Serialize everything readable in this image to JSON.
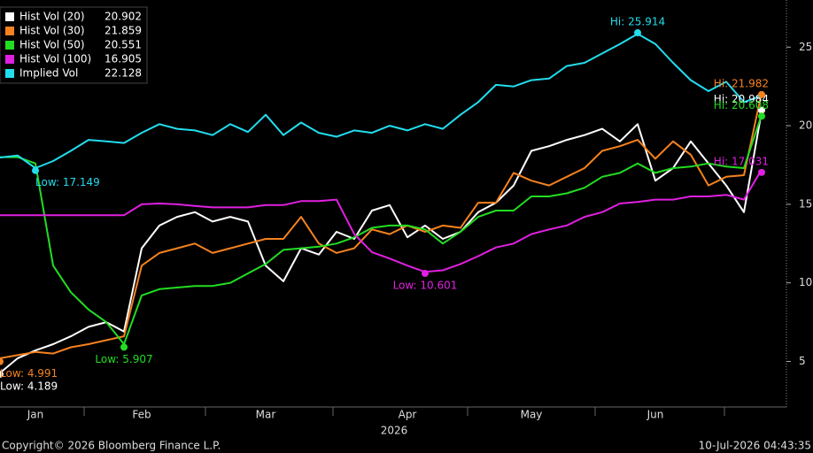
{
  "chart_data": {
    "type": "line",
    "categories": [
      null,
      null,
      "Jan",
      null,
      null,
      null,
      null,
      null,
      "Feb",
      null,
      null,
      null,
      null,
      null,
      null,
      "Mar",
      null,
      null,
      null,
      null,
      null,
      null,
      null,
      "Apr",
      null,
      null,
      null,
      null,
      null,
      null,
      "May",
      null,
      null,
      null,
      null,
      null,
      null,
      "Jun",
      null,
      null,
      null,
      null,
      null,
      null
    ],
    "x_label": "2026",
    "series": [
      {
        "name": "Hist Vol (20)",
        "last": "20.902",
        "color": "#ffffff",
        "values": [
          4.27,
          5.2,
          5.7,
          6.1,
          6.6,
          7.2,
          7.5,
          6.9,
          12.2,
          13.65,
          14.2,
          14.5,
          13.9,
          14.2,
          13.9,
          11.1,
          10.1,
          12.2,
          11.8,
          13.25,
          12.8,
          14.6,
          14.95,
          12.9,
          13.65,
          12.8,
          13.25,
          14.5,
          15.1,
          16.2,
          18.4,
          18.7,
          19.1,
          19.4,
          19.8,
          19.0,
          20.1,
          16.5,
          17.3,
          19.0,
          17.6,
          16.2,
          14.5,
          20.9
        ],
        "low": 4.189,
        "low_label": "Low: 4.189",
        "high": 20.984,
        "high_label": "Hi: 20.984"
      },
      {
        "name": "Hist Vol (30)",
        "last": "21.859",
        "color": "#f5821f",
        "values": [
          5.2,
          5.4,
          5.6,
          5.5,
          5.9,
          6.1,
          6.35,
          6.6,
          11.1,
          11.9,
          12.2,
          12.5,
          11.9,
          12.2,
          12.5,
          12.8,
          12.8,
          14.2,
          12.5,
          11.9,
          12.2,
          13.4,
          13.1,
          13.65,
          13.25,
          13.65,
          13.5,
          15.1,
          15.1,
          17.0,
          16.5,
          16.2,
          16.75,
          17.3,
          18.4,
          18.7,
          19.1,
          17.9,
          19.0,
          18.15,
          16.2,
          16.75,
          16.85,
          22.1
        ],
        "low": 4.991,
        "low_label": "Low: 4.991",
        "high": 21.982,
        "high_label": "Hi: 21.982"
      },
      {
        "name": "Hist Vol (50)",
        "last": "20.551",
        "color": "#22dd22",
        "values": [
          18.0,
          18.0,
          17.6,
          11.1,
          9.4,
          8.3,
          7.5,
          6.1,
          9.2,
          9.6,
          9.7,
          9.8,
          9.8,
          10.0,
          10.6,
          11.2,
          12.1,
          12.2,
          12.3,
          12.5,
          12.9,
          13.5,
          13.65,
          13.65,
          13.4,
          12.5,
          13.25,
          14.2,
          14.6,
          14.6,
          15.5,
          15.5,
          15.7,
          16.05,
          16.75,
          17.0,
          17.6,
          17.0,
          17.3,
          17.4,
          17.6,
          17.4,
          17.3,
          20.7
        ],
        "low": 5.907,
        "low_label": "Low: 5.907",
        "high": 20.608,
        "high_label": "Hi: 20.608"
      },
      {
        "name": "Hist Vol (100)",
        "last": "16.905",
        "color": "#e020e0",
        "values": [
          14.3,
          14.3,
          14.3,
          14.3,
          14.3,
          14.3,
          14.3,
          14.3,
          15.0,
          15.05,
          15.0,
          14.9,
          14.8,
          14.8,
          14.8,
          14.95,
          14.95,
          15.2,
          15.2,
          15.3,
          13.1,
          11.95,
          11.55,
          11.1,
          10.7,
          10.8,
          11.2,
          11.7,
          12.25,
          12.5,
          13.1,
          13.4,
          13.65,
          14.2,
          14.5,
          15.05,
          15.15,
          15.3,
          15.3,
          15.5,
          15.5,
          15.6,
          15.3,
          17.2
        ],
        "low": 10.601,
        "low_label": "Low: 10.601",
        "high": 17.031,
        "high_label": "Hi: 17.031"
      },
      {
        "name": "Implied Vol",
        "last": "22.128",
        "color": "#22ddee",
        "values": [
          17.98,
          18.1,
          17.3,
          17.75,
          18.4,
          19.1,
          19.0,
          18.9,
          19.55,
          20.1,
          19.8,
          19.7,
          19.4,
          20.1,
          19.6,
          20.7,
          19.4,
          20.2,
          19.55,
          19.3,
          19.7,
          19.55,
          20.0,
          19.7,
          20.1,
          19.8,
          20.7,
          21.5,
          22.6,
          22.5,
          22.9,
          23.0,
          23.8,
          24.0,
          24.6,
          25.2,
          25.85,
          25.2,
          24.0,
          22.9,
          22.2,
          22.8,
          21.5,
          21.9
        ],
        "low": 17.149,
        "low_label": "Low: 17.149",
        "high": 25.914,
        "high_label": "Hi: 25.914"
      }
    ],
    "ylim": [
      2.1,
      28
    ],
    "yticks": [
      5,
      10,
      15,
      20,
      25
    ],
    "y_axis_side": "right",
    "copyright": "Copyright© 2026 Bloomberg Finance L.P.",
    "timestamp": "10-Jul-2026 04:43:35"
  }
}
